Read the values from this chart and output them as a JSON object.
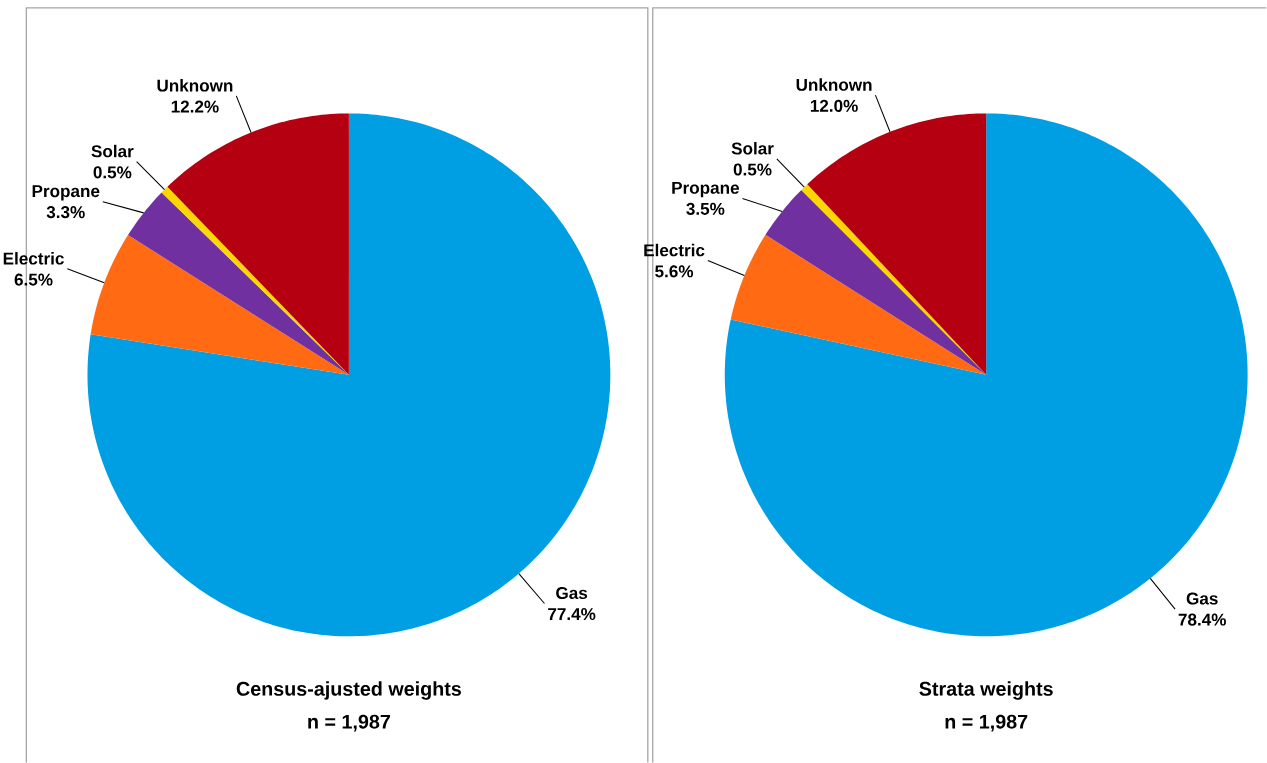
{
  "chart_data": [
    {
      "type": "pie",
      "title": "Census-ajusted weights",
      "subtitle": "n = 1,987",
      "categories": [
        "Gas",
        "Electric",
        "Propane",
        "Solar",
        "Unknown"
      ],
      "values": [
        77.4,
        6.5,
        3.3,
        0.5,
        12.2
      ],
      "value_labels": [
        "77.4%",
        "6.5%",
        "3.3%",
        "0.5%",
        "12.2%"
      ],
      "colors": [
        "#009fe3",
        "#ff6a13",
        "#7030a0",
        "#ffd700",
        "#b50012"
      ]
    },
    {
      "type": "pie",
      "title": "Strata weights",
      "subtitle": "n = 1,987",
      "categories": [
        "Gas",
        "Electric",
        "Propane",
        "Solar",
        "Unknown"
      ],
      "values": [
        78.4,
        5.6,
        3.5,
        0.5,
        12.0
      ],
      "value_labels": [
        "78.4%",
        "5.6%",
        "3.5%",
        "0.5%",
        "12.0%"
      ],
      "colors": [
        "#009fe3",
        "#ff6a13",
        "#7030a0",
        "#ffd700",
        "#b50012"
      ]
    }
  ]
}
